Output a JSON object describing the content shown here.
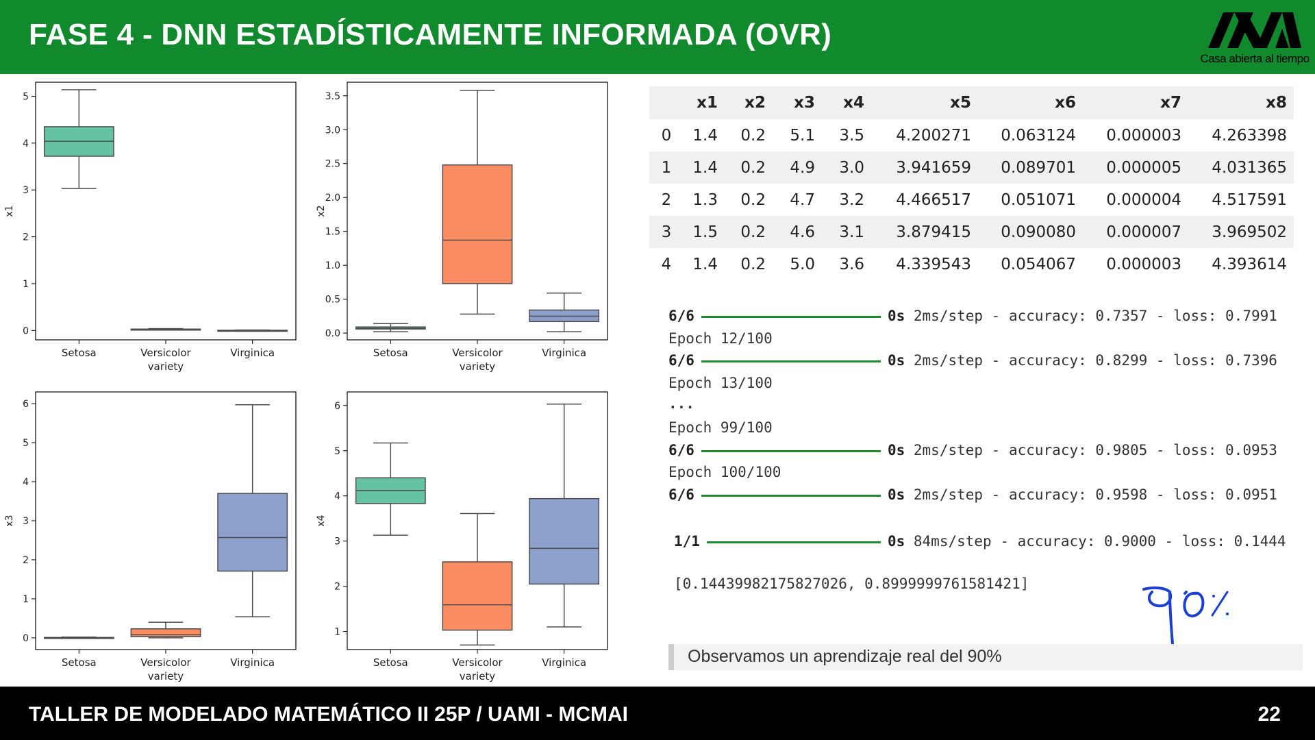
{
  "header": {
    "title": "FASE 4 - DNN ESTADÍSTICAMENTE INFORMADA (OVR)",
    "logo_text": "Casa abierta al tiempo",
    "bg_color": "#118a2e"
  },
  "chart_data": [
    {
      "type": "boxplot",
      "xlabel": "variety",
      "ylabel": "x1",
      "categories": [
        "Setosa",
        "Versicolor",
        "Virginica"
      ],
      "ylim": [
        -0.2,
        5.3
      ],
      "yticks": [
        0,
        1,
        2,
        3,
        4,
        5
      ],
      "colors": [
        "#66c2a5",
        "#fc8d62",
        "#8da0cb"
      ],
      "boxes": [
        {
          "min": 3.03,
          "q1": 3.72,
          "median": 4.04,
          "q3": 4.35,
          "max": 5.14
        },
        {
          "min": 0.01,
          "q1": 0.01,
          "median": 0.02,
          "q3": 0.03,
          "max": 0.04
        },
        {
          "min": 0.0,
          "q1": 0.0,
          "median": 0.0,
          "q3": 0.005,
          "max": 0.01
        }
      ]
    },
    {
      "type": "boxplot",
      "xlabel": "variety",
      "ylabel": "x2",
      "categories": [
        "Setosa",
        "Versicolor",
        "Virginica"
      ],
      "ylim": [
        -0.1,
        3.7
      ],
      "yticks": [
        0.0,
        0.5,
        1.0,
        1.5,
        2.0,
        2.5,
        3.0,
        3.5
      ],
      "colors": [
        "#66c2a5",
        "#fc8d62",
        "#8da0cb"
      ],
      "boxes": [
        {
          "min": 0.02,
          "q1": 0.06,
          "median": 0.07,
          "q3": 0.09,
          "max": 0.14
        },
        {
          "min": 0.28,
          "q1": 0.73,
          "median": 1.37,
          "q3": 2.48,
          "max": 3.58
        },
        {
          "min": 0.02,
          "q1": 0.17,
          "median": 0.25,
          "q3": 0.34,
          "max": 0.59
        }
      ]
    },
    {
      "type": "boxplot",
      "xlabel": "variety",
      "ylabel": "x3",
      "categories": [
        "Setosa",
        "Versicolor",
        "Virginica"
      ],
      "ylim": [
        -0.3,
        6.3
      ],
      "yticks": [
        0,
        1,
        2,
        3,
        4,
        5,
        6
      ],
      "colors": [
        "#66c2a5",
        "#fc8d62",
        "#8da0cb"
      ],
      "boxes": [
        {
          "min": 0.0,
          "q1": 0.0,
          "median": 0.0,
          "q3": 0.01,
          "max": 0.02
        },
        {
          "min": 0.0,
          "q1": 0.03,
          "median": 0.08,
          "q3": 0.23,
          "max": 0.4
        },
        {
          "min": 0.54,
          "q1": 1.71,
          "median": 2.57,
          "q3": 3.7,
          "max": 5.97
        }
      ]
    },
    {
      "type": "boxplot",
      "xlabel": "variety",
      "ylabel": "x4",
      "categories": [
        "Setosa",
        "Versicolor",
        "Virginica"
      ],
      "ylim": [
        0.6,
        6.3
      ],
      "yticks": [
        1,
        2,
        3,
        4,
        5,
        6
      ],
      "colors": [
        "#66c2a5",
        "#fc8d62",
        "#8da0cb"
      ],
      "boxes": [
        {
          "min": 3.13,
          "q1": 3.83,
          "median": 4.12,
          "q3": 4.4,
          "max": 5.17
        },
        {
          "min": 0.7,
          "q1": 1.03,
          "median": 1.59,
          "q3": 2.54,
          "max": 3.61
        },
        {
          "min": 1.1,
          "q1": 2.05,
          "median": 2.84,
          "q3": 3.94,
          "max": 6.03
        }
      ]
    }
  ],
  "table": {
    "columns": [
      "",
      "x1",
      "x2",
      "x3",
      "x4",
      "x5",
      "x6",
      "x7",
      "x8"
    ],
    "rows": [
      [
        "0",
        "1.4",
        "0.2",
        "5.1",
        "3.5",
        "4.200271",
        "0.063124",
        "0.000003",
        "4.263398"
      ],
      [
        "1",
        "1.4",
        "0.2",
        "4.9",
        "3.0",
        "3.941659",
        "0.089701",
        "0.000005",
        "4.031365"
      ],
      [
        "2",
        "1.3",
        "0.2",
        "4.7",
        "3.2",
        "4.466517",
        "0.051071",
        "0.000004",
        "4.517591"
      ],
      [
        "3",
        "1.5",
        "0.2",
        "4.6",
        "3.1",
        "3.879415",
        "0.090080",
        "0.000007",
        "3.969502"
      ],
      [
        "4",
        "1.4",
        "0.2",
        "5.0",
        "3.6",
        "4.339543",
        "0.054067",
        "0.000003",
        "4.393614"
      ]
    ]
  },
  "training_log": {
    "step_a": "6/6",
    "time_a": "0s",
    "rest_a": "2ms/step - accuracy: 0.7357 - loss: 0.7991",
    "epoch_12": "Epoch 12/100",
    "step_b": "6/6",
    "time_b": "0s",
    "rest_b": "2ms/step - accuracy: 0.8299 - loss: 0.7396",
    "epoch_13": "Epoch 13/100",
    "ellipsis": "...",
    "epoch_99": "Epoch 99/100",
    "step_c": "6/6",
    "time_c": "0s",
    "rest_c": "2ms/step - accuracy: 0.9805 - loss: 0.0953",
    "epoch_100": "Epoch 100/100",
    "step_d": "6/6",
    "time_d": "0s",
    "rest_d": "2ms/step - accuracy: 0.9598 - loss: 0.0951",
    "eval_step": "1/1",
    "eval_time": "0s",
    "eval_rest": "84ms/step - accuracy: 0.9000 - loss: 0.1444",
    "result": "[0.14439982175827026, 0.8999999761581421]"
  },
  "handwritten_note": "90%",
  "note": {
    "text": "Observamos un aprendizaje real del 90%"
  },
  "footer": {
    "text": "TALLER DE MODELADO MATEMÁTICO II 25P / UAMI - MCMAI",
    "page": "22"
  }
}
